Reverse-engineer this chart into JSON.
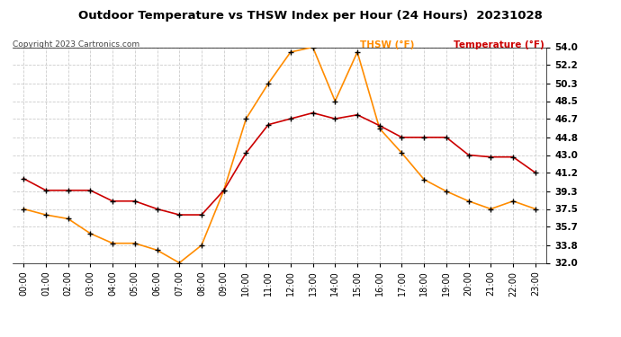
{
  "title": "Outdoor Temperature vs THSW Index per Hour (24 Hours)  20231028",
  "copyright": "Copyright 2023 Cartronics.com",
  "legend_thsw": "THSW (°F)",
  "legend_temp": "Temperature (°F)",
  "hours": [
    0,
    1,
    2,
    3,
    4,
    5,
    6,
    7,
    8,
    9,
    10,
    11,
    12,
    13,
    14,
    15,
    16,
    17,
    18,
    19,
    20,
    21,
    22,
    23
  ],
  "temperature": [
    40.6,
    39.4,
    39.4,
    39.4,
    38.3,
    38.3,
    37.5,
    36.9,
    36.9,
    39.4,
    43.2,
    46.1,
    46.7,
    47.3,
    46.7,
    47.1,
    46.0,
    44.8,
    44.8,
    44.8,
    43.0,
    42.8,
    42.8,
    41.2
  ],
  "thsw": [
    37.5,
    36.9,
    36.5,
    35.0,
    34.0,
    34.0,
    33.3,
    32.0,
    33.8,
    39.4,
    46.7,
    50.3,
    53.5,
    54.0,
    48.5,
    53.5,
    45.7,
    43.2,
    40.5,
    39.3,
    38.3,
    37.5,
    38.3,
    37.5
  ],
  "ylim": [
    32.0,
    54.0
  ],
  "yticks": [
    32.0,
    33.8,
    35.7,
    37.5,
    39.3,
    41.2,
    43.0,
    44.8,
    46.7,
    48.5,
    50.3,
    52.2,
    54.0
  ],
  "thsw_color": "#FF8C00",
  "temp_color": "#CC0000",
  "marker_color": "#000000",
  "bg_color": "#FFFFFF",
  "grid_color": "#CCCCCC",
  "title_color": "#000000",
  "copyright_color": "#444444",
  "legend_thsw_color": "#FF8C00",
  "legend_temp_color": "#CC0000"
}
